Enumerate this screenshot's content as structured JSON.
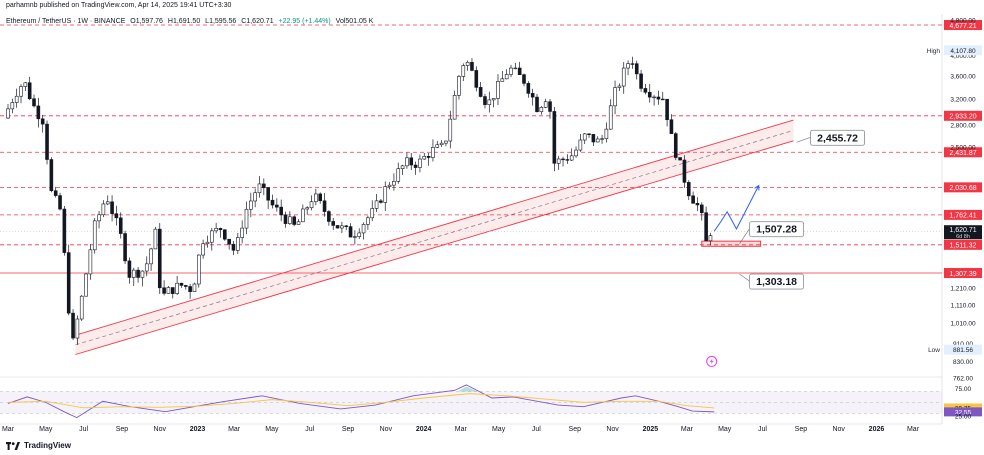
{
  "header": {
    "publisher": "parhamnb published on TradingView.com, Apr 14, 2025 19:41 UTC+3:30"
  },
  "symbol": {
    "name": "Ethereum / TetherUS · 1W · BINANCE",
    "open": "O1,597.76",
    "high": "H1,691.50",
    "low": "L1,595.56",
    "close": "C1,620.71",
    "change": "+22.95 (+1.44%)",
    "volume": "Vol501.05 K"
  },
  "brand": {
    "name": "TradingView"
  },
  "chart_data": {
    "type": "candlestick",
    "symbol": "ETHUSDT",
    "exchange": "BINANCE",
    "interval": "1W",
    "y_scale": "log",
    "ylim": [
      770,
      4950
    ],
    "x_range": [
      "2022-03-01",
      "2026-06-01"
    ],
    "price_axis_labels": [
      4800,
      4000,
      3600,
      3200,
      2800,
      2500,
      1210,
      1110,
      1010,
      910,
      830,
      762
    ],
    "price_axis_label_texts": [
      "4,800.00",
      "4,000.00",
      "3,600.00",
      "3,200.00",
      "2,800.00",
      "2,500.00",
      "1,210.00",
      "1,110.00",
      "1,010.00",
      "910.00",
      "830.00",
      "762.00"
    ],
    "time_axis_labels": [
      {
        "t": "2022-03-01",
        "label": "Mar",
        "bold": false
      },
      {
        "t": "2022-05-01",
        "label": "May",
        "bold": false
      },
      {
        "t": "2022-07-01",
        "label": "Jul",
        "bold": false
      },
      {
        "t": "2022-09-01",
        "label": "Sep",
        "bold": false
      },
      {
        "t": "2022-11-01",
        "label": "Nov",
        "bold": false
      },
      {
        "t": "2023-01-01",
        "label": "2023",
        "bold": true
      },
      {
        "t": "2023-03-01",
        "label": "Mar",
        "bold": false
      },
      {
        "t": "2023-05-01",
        "label": "May",
        "bold": false
      },
      {
        "t": "2023-07-01",
        "label": "Jul",
        "bold": false
      },
      {
        "t": "2023-09-01",
        "label": "Sep",
        "bold": false
      },
      {
        "t": "2023-11-01",
        "label": "Nov",
        "bold": false
      },
      {
        "t": "2024-01-01",
        "label": "2024",
        "bold": true
      },
      {
        "t": "2024-03-01",
        "label": "Mar",
        "bold": false
      },
      {
        "t": "2024-05-01",
        "label": "May",
        "bold": false
      },
      {
        "t": "2024-07-01",
        "label": "Jul",
        "bold": false
      },
      {
        "t": "2024-09-01",
        "label": "Sep",
        "bold": false
      },
      {
        "t": "2024-11-01",
        "label": "Nov",
        "bold": false
      },
      {
        "t": "2025-01-01",
        "label": "2025",
        "bold": true
      },
      {
        "t": "2025-03-01",
        "label": "Mar",
        "bold": false
      },
      {
        "t": "2025-05-01",
        "label": "May",
        "bold": false
      },
      {
        "t": "2025-07-01",
        "label": "Jul",
        "bold": false
      },
      {
        "t": "2025-09-01",
        "label": "Sep",
        "bold": false
      },
      {
        "t": "2025-11-01",
        "label": "Nov",
        "bold": false
      },
      {
        "t": "2026-01-01",
        "label": "2026",
        "bold": true
      },
      {
        "t": "2026-03-01",
        "label": "Mar",
        "bold": false
      },
      {
        "t": "2026-05-01",
        "label": "May",
        "bold": false
      }
    ],
    "price_path": [
      [
        "2022-03-01",
        2900
      ],
      [
        "2022-03-20",
        3300
      ],
      [
        "2022-04-03",
        3500
      ],
      [
        "2022-04-20",
        3050
      ],
      [
        "2022-05-05",
        2850
      ],
      [
        "2022-05-15",
        2000
      ],
      [
        "2022-06-01",
        1800
      ],
      [
        "2022-06-15",
        1050
      ],
      [
        "2022-06-20",
        900
      ],
      [
        "2022-07-05",
        1150
      ],
      [
        "2022-07-25",
        1650
      ],
      [
        "2022-08-14",
        1950
      ],
      [
        "2022-09-05",
        1600
      ],
      [
        "2022-09-20",
        1300
      ],
      [
        "2022-10-15",
        1330
      ],
      [
        "2022-11-01",
        1600
      ],
      [
        "2022-11-10",
        1150
      ],
      [
        "2022-11-25",
        1200
      ],
      [
        "2022-12-15",
        1230
      ],
      [
        "2022-12-31",
        1200
      ],
      [
        "2023-01-15",
        1550
      ],
      [
        "2023-02-15",
        1650
      ],
      [
        "2023-03-10",
        1450
      ],
      [
        "2023-03-25",
        1780
      ],
      [
        "2023-04-16",
        2050
      ],
      [
        "2023-05-10",
        1840
      ],
      [
        "2023-06-15",
        1650
      ],
      [
        "2023-07-14",
        1950
      ],
      [
        "2023-08-17",
        1680
      ],
      [
        "2023-09-15",
        1590
      ],
      [
        "2023-10-20",
        1800
      ],
      [
        "2023-11-10",
        2050
      ],
      [
        "2023-12-10",
        2300
      ],
      [
        "2023-12-31",
        2300
      ],
      [
        "2024-01-20",
        2450
      ],
      [
        "2024-02-10",
        2500
      ],
      [
        "2024-03-05",
        3600
      ],
      [
        "2024-03-15",
        3950
      ],
      [
        "2024-04-20",
        3100
      ],
      [
        "2024-05-25",
        3750
      ],
      [
        "2024-06-20",
        3500
      ],
      [
        "2024-07-10",
        3050
      ],
      [
        "2024-07-28",
        3300
      ],
      [
        "2024-08-05",
        2300
      ],
      [
        "2024-09-05",
        2400
      ],
      [
        "2024-09-25",
        2650
      ],
      [
        "2024-10-20",
        2550
      ],
      [
        "2024-11-12",
        3300
      ],
      [
        "2024-12-08",
        4000
      ],
      [
        "2024-12-20",
        3500
      ],
      [
        "2025-01-10",
        3300
      ],
      [
        "2025-01-31",
        3200
      ],
      [
        "2025-02-08",
        2700
      ],
      [
        "2025-02-28",
        2200
      ],
      [
        "2025-03-10",
        2000
      ],
      [
        "2025-03-30",
        1800
      ],
      [
        "2025-04-09",
        1500
      ],
      [
        "2025-04-14",
        1620
      ]
    ],
    "annotations": {
      "channel": {
        "lower": [
          [
            "2022-06-18",
            860
          ],
          [
            "2025-08-20",
            2580
          ]
        ],
        "upper": [
          [
            "2022-06-18",
            950
          ],
          [
            "2025-08-20",
            2870
          ]
        ],
        "mid_dashed": true
      },
      "horizontal_levels": [
        {
          "price": 4677.21,
          "label": "4,677.21",
          "style": "dashed",
          "kind": "resistance"
        },
        {
          "price": 2933.2,
          "label": "2,933.20",
          "style": "dashed",
          "kind": "resistance"
        },
        {
          "price": 2431.87,
          "label": "2,431.87",
          "style": "dashed",
          "kind": "resistance"
        },
        {
          "price": 2030.68,
          "label": "2,030.68",
          "style": "dashed",
          "kind": "resistance"
        },
        {
          "price": 1762.41,
          "label": "1,762.41",
          "style": "dashed",
          "kind": "resistance"
        },
        {
          "price": 1511.32,
          "label": "1,511.32",
          "style": "dashed",
          "kind": "support"
        },
        {
          "price": 1307.39,
          "label": "1,307.39",
          "style": "solid",
          "kind": "support"
        }
      ],
      "price_callouts": [
        {
          "label": "2,455.72",
          "anchor": [
            "2025-08-25",
            2560
          ]
        },
        {
          "label": "1,507.28",
          "anchor": [
            "2025-05-25",
            1520
          ]
        },
        {
          "label": "1,303.18",
          "anchor": [
            "2025-05-25",
            1300
          ]
        }
      ],
      "current_price": {
        "label": "1,620.71",
        "countdown": "6d 8h",
        "price": 1620.71
      },
      "high": {
        "label": "High",
        "value": "4,107.80",
        "price": 4107.8
      },
      "low": {
        "label": "Low",
        "value": "881.56",
        "price": 881.56
      },
      "projection_path": [
        [
          "2025-04-14",
          1620
        ],
        [
          "2025-04-22",
          1680
        ],
        [
          "2025-05-05",
          1790
        ],
        [
          "2025-05-20",
          1640
        ],
        [
          "2025-06-25",
          2050
        ]
      ],
      "demand_zone": {
        "from": "2025-03-25",
        "to": "2025-06-28",
        "top": 1540,
        "bottom": 1500
      }
    },
    "rsi_panel": {
      "axis_labels": [
        {
          "v": 75,
          "label": "75.00"
        },
        {
          "v": 39.75,
          "label": "39.75",
          "kind": "ma"
        },
        {
          "v": 32.55,
          "label": "32.55",
          "kind": "rsi"
        },
        {
          "v": 25,
          "label": "25.00"
        }
      ],
      "ylim": [
        25,
        80
      ],
      "rsi": [
        [
          "2022-03-01",
          48
        ],
        [
          "2022-04-01",
          60
        ],
        [
          "2022-05-01",
          50
        ],
        [
          "2022-06-01",
          32
        ],
        [
          "2022-06-20",
          22
        ],
        [
          "2022-08-01",
          52
        ],
        [
          "2022-09-15",
          42
        ],
        [
          "2022-11-10",
          33
        ],
        [
          "2023-01-10",
          45
        ],
        [
          "2023-02-15",
          52
        ],
        [
          "2023-04-15",
          62
        ],
        [
          "2023-06-15",
          48
        ],
        [
          "2023-08-20",
          38
        ],
        [
          "2023-10-15",
          45
        ],
        [
          "2023-12-15",
          62
        ],
        [
          "2024-02-20",
          72
        ],
        [
          "2024-03-10",
          82
        ],
        [
          "2024-04-20",
          58
        ],
        [
          "2024-05-25",
          60
        ],
        [
          "2024-08-05",
          45
        ],
        [
          "2024-09-15",
          42
        ],
        [
          "2024-11-15",
          58
        ],
        [
          "2024-12-08",
          62
        ],
        [
          "2025-01-15",
          52
        ],
        [
          "2025-02-15",
          42
        ],
        [
          "2025-03-10",
          34
        ],
        [
          "2025-04-14",
          32.55
        ]
      ],
      "rsi_ma": [
        [
          "2022-03-01",
          50
        ],
        [
          "2022-05-01",
          52
        ],
        [
          "2022-07-01",
          40
        ],
        [
          "2022-09-01",
          42
        ],
        [
          "2022-11-01",
          41
        ],
        [
          "2023-01-01",
          43
        ],
        [
          "2023-03-01",
          48
        ],
        [
          "2023-05-01",
          55
        ],
        [
          "2023-07-01",
          50
        ],
        [
          "2023-09-01",
          44
        ],
        [
          "2023-11-01",
          50
        ],
        [
          "2024-01-01",
          58
        ],
        [
          "2024-03-15",
          66
        ],
        [
          "2024-05-15",
          62
        ],
        [
          "2024-07-15",
          56
        ],
        [
          "2024-09-15",
          50
        ],
        [
          "2024-11-15",
          52
        ],
        [
          "2025-01-15",
          52
        ],
        [
          "2025-03-01",
          44
        ],
        [
          "2025-04-14",
          39.75
        ]
      ]
    },
    "colors": {
      "up": "#26a69a",
      "down": "#ef5350",
      "candle": "#131722",
      "levels": "#f23645",
      "channel": "#f23645",
      "channel_fill": "rgba(242,54,69,0.10)",
      "projection": "#2962ff",
      "rsi": "#7e57c2",
      "rsi_ma": "#f7c542",
      "rsi_band": "rgba(126,87,194,0.08)"
    }
  }
}
